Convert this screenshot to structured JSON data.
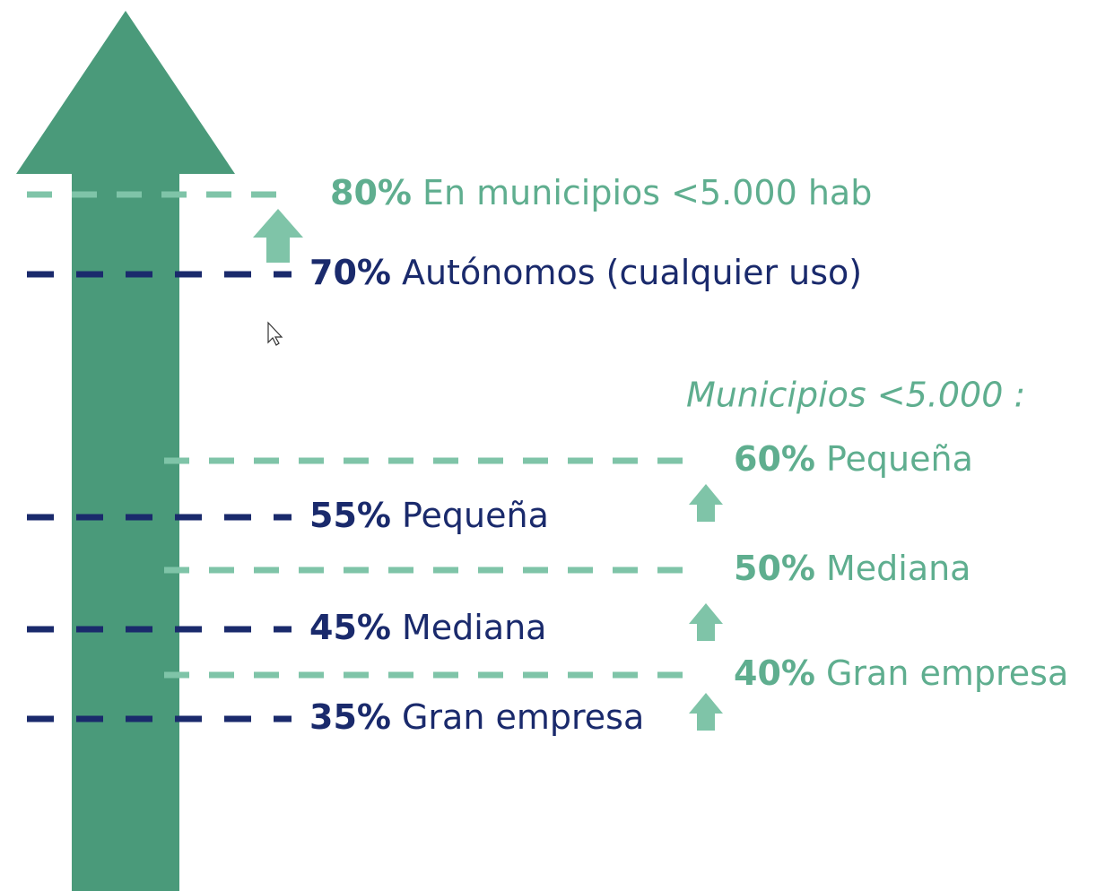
{
  "top": {
    "percent": "80%",
    "label": "En municipios <5.000 hab"
  },
  "general": [
    {
      "percent": "70%",
      "label": "Autónomos (cualquier uso)"
    },
    {
      "percent": "55%",
      "label": "Pequeña"
    },
    {
      "percent": "45%",
      "label": "Mediana"
    },
    {
      "percent": "35%",
      "label": "Gran empresa"
    }
  ],
  "municipios": {
    "heading": "Municipios <5.000 :",
    "items": [
      {
        "percent": "60%",
        "label": "Pequeña"
      },
      {
        "percent": "50%",
        "label": "Mediana"
      },
      {
        "percent": "40%",
        "label": "Gran empresa"
      }
    ]
  }
}
